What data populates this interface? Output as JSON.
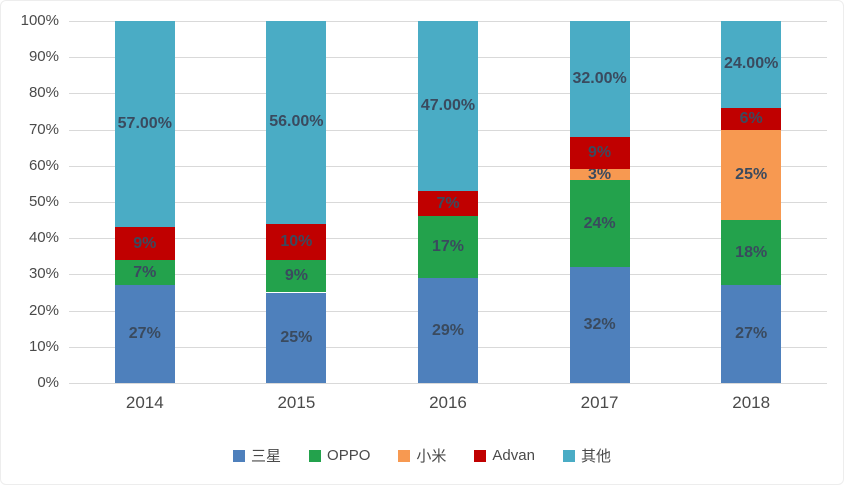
{
  "chart_data": {
    "type": "bar",
    "subtype": "stacked-100-percent",
    "title": "",
    "xlabel": "",
    "ylabel": "",
    "categories": [
      "2014",
      "2015",
      "2016",
      "2017",
      "2018"
    ],
    "series": [
      {
        "name": "三星",
        "color": "#4E80BC",
        "values": [
          27,
          25,
          29,
          32,
          27
        ],
        "labels": [
          "27%",
          "25%",
          "29%",
          "32%",
          "27%"
        ]
      },
      {
        "name": "OPPO",
        "color": "#23A24C",
        "values": [
          7,
          9,
          17,
          24,
          18
        ],
        "labels": [
          "7%",
          "9%",
          "17%",
          "24%",
          "18%"
        ]
      },
      {
        "name": "小米",
        "color": "#F79951",
        "values": [
          0,
          0,
          0,
          3,
          25
        ],
        "labels": [
          "",
          "",
          "",
          "3%",
          "25%"
        ]
      },
      {
        "name": "Advan",
        "color": "#C00000",
        "values": [
          9,
          10,
          7,
          9,
          6
        ],
        "labels": [
          "9%",
          "10%",
          "7%",
          "9%",
          "6%"
        ]
      },
      {
        "name": "其他",
        "color": "#4AACC5",
        "values": [
          57,
          56,
          47,
          32,
          24
        ],
        "labels": [
          "57.00%",
          "56.00%",
          "47.00%",
          "32.00%",
          "24.00%"
        ]
      }
    ],
    "y_axis": {
      "min": 0,
      "max": 100,
      "tick_step": 10,
      "tick_labels": [
        "100%",
        "90%",
        "80%",
        "70%",
        "60%",
        "50%",
        "40%",
        "30%",
        "20%",
        "10%",
        "0%"
      ]
    },
    "legend": {
      "position": "bottom",
      "entries": [
        "三星",
        "OPPO",
        "小米",
        "Advan",
        "其他"
      ]
    },
    "grid": true,
    "colors": {
      "gridline": "#D9D9D9",
      "axis_text": "#4a4a4a",
      "data_label": "#3A4A5E",
      "background": "#FFFFFF"
    }
  }
}
